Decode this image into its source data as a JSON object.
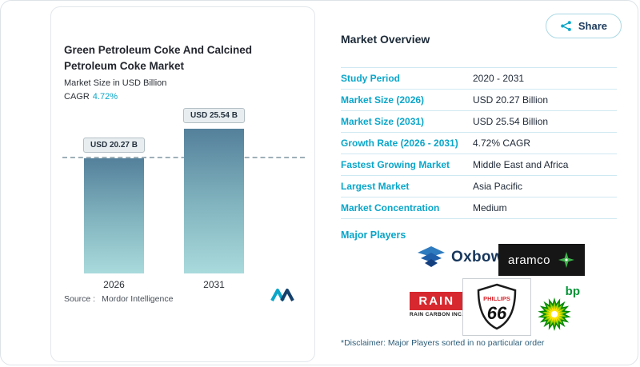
{
  "share": {
    "label": "Share"
  },
  "chart_card": {
    "title": "Green Petroleum Coke And Calcined Petroleum Coke Market",
    "subtitle": "Market Size in USD Billion",
    "cagr_label": "CAGR",
    "cagr_value": "4.72%",
    "source_prefix": "Source :",
    "source_name": "Mordor Intelligence"
  },
  "chart_data": {
    "type": "bar",
    "title": "Green Petroleum Coke And Calcined Petroleum Coke Market",
    "ylabel": "Market Size in USD Billion",
    "categories": [
      "2026",
      "2031"
    ],
    "values": [
      20.27,
      25.54
    ],
    "bar_labels": [
      "USD 20.27 B",
      "USD 25.54 B"
    ],
    "unit": "USD Billion",
    "cagr": "4.72%",
    "dashed_reference_value": 20.27,
    "legend": false,
    "grid": false
  },
  "overview": {
    "heading": "Market Overview",
    "rows": [
      {
        "label": "Study Period",
        "value": "2020 - 2031"
      },
      {
        "label": "Market Size (2026)",
        "value": "USD 20.27 Billion"
      },
      {
        "label": "Market Size (2031)",
        "value": "USD 25.54 Billion"
      },
      {
        "label": "Growth Rate (2026 - 2031)",
        "value": "4.72% CAGR"
      },
      {
        "label": "Fastest Growing Market",
        "value": "Middle East and Africa"
      },
      {
        "label": "Largest Market",
        "value": "Asia Pacific"
      },
      {
        "label": "Market Concentration",
        "value": "Medium"
      }
    ],
    "major_players": {
      "label": "Major Players",
      "oxbow": "Oxbow",
      "aramco": "aramco",
      "rain": "RAIN",
      "rain_sub": "RAIN CARBON INC.",
      "phillips_top": "PHILLIPS",
      "phillips_num": "66",
      "bp": "bp"
    },
    "disclaimer": "*Disclaimer: Major Players sorted in no particular order"
  },
  "colors": {
    "accent": "#0AA6C9",
    "navy": "#1C2A38",
    "bar_top": "#54809B",
    "bar_bottom": "#A9DADC",
    "divider": "#CFE9F2",
    "rain_red": "#D7282F",
    "bp_green": "#009336"
  },
  "icons": {
    "share": "share-icon",
    "mordor": "mordor-intelligence-logo"
  }
}
